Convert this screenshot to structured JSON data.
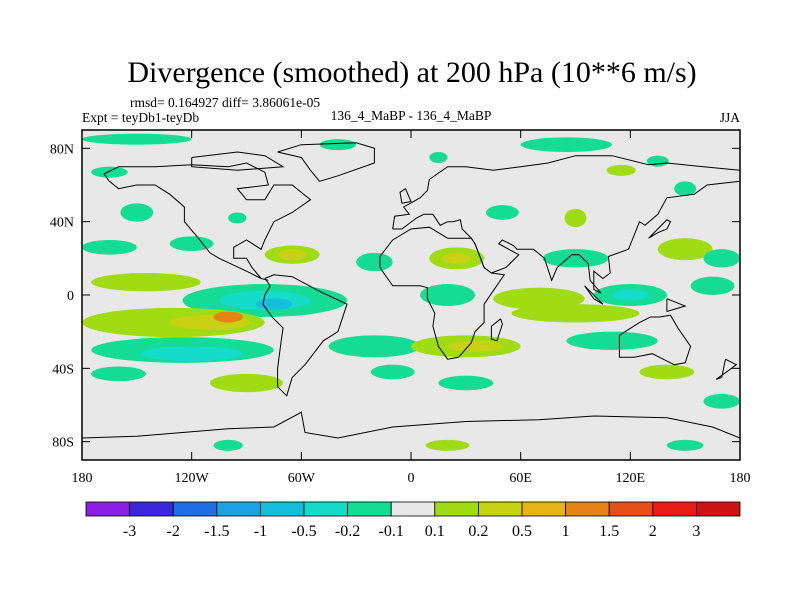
{
  "chart_data": {
    "type": "heatmap",
    "title": "Divergence (smoothed) at 200 hPa (10**6 m/s)",
    "stats": "rmsd= 0.164927 diff= 3.86061e-05",
    "left_label": "Expt = teyDb1-teyDb",
    "center_label": "136_4_MaBP - 136_4_MaBP",
    "right_label": "JJA",
    "x_ticks": [
      {
        "value": -180,
        "label": "180"
      },
      {
        "value": -120,
        "label": "120W"
      },
      {
        "value": -60,
        "label": "60W"
      },
      {
        "value": 0,
        "label": "0"
      },
      {
        "value": 60,
        "label": "60E"
      },
      {
        "value": 120,
        "label": "120E"
      },
      {
        "value": 180,
        "label": "180"
      }
    ],
    "y_ticks": [
      {
        "value": 80,
        "label": "80N"
      },
      {
        "value": 40,
        "label": "40N"
      },
      {
        "value": 0,
        "label": "0"
      },
      {
        "value": -40,
        "label": "40S"
      },
      {
        "value": -80,
        "label": "80S"
      }
    ],
    "xlim": [
      -180,
      180
    ],
    "ylim": [
      -90,
      90
    ],
    "colorbar": {
      "levels": [
        "-3",
        "-2",
        "-1.5",
        "-1",
        "-0.5",
        "-0.2",
        "-0.1",
        "0.1",
        "0.2",
        "0.5",
        "1",
        "1.5",
        "2",
        "3"
      ],
      "colors": [
        "#8c1ee6",
        "#3c28dc",
        "#1e6ee6",
        "#1ea0e6",
        "#14bedc",
        "#14dcc8",
        "#14dc96",
        "#e8e8e8",
        "#a0dc14",
        "#c8d214",
        "#e6b414",
        "#e68214",
        "#e65014",
        "#e61e14",
        "#cc1414"
      ]
    },
    "regions": [
      {
        "lon": -150,
        "lat": 85,
        "rx": 30,
        "ry": 3,
        "bin": 6
      },
      {
        "lon": -165,
        "lat": 67,
        "rx": 10,
        "ry": 3,
        "bin": 6
      },
      {
        "lon": -40,
        "lat": 82,
        "rx": 10,
        "ry": 3,
        "bin": 6
      },
      {
        "lon": 15,
        "lat": 75,
        "rx": 5,
        "ry": 3,
        "bin": 6
      },
      {
        "lon": 85,
        "lat": 82,
        "rx": 25,
        "ry": 4,
        "bin": 6
      },
      {
        "lon": 115,
        "lat": 68,
        "rx": 8,
        "ry": 3,
        "bin": 8
      },
      {
        "lon": 135,
        "lat": 73,
        "rx": 6,
        "ry": 3,
        "bin": 6
      },
      {
        "lon": -150,
        "lat": 45,
        "rx": 9,
        "ry": 5,
        "bin": 6
      },
      {
        "lon": -95,
        "lat": 42,
        "rx": 5,
        "ry": 3,
        "bin": 6
      },
      {
        "lon": 50,
        "lat": 45,
        "rx": 9,
        "ry": 4,
        "bin": 6
      },
      {
        "lon": 90,
        "lat": 42,
        "rx": 6,
        "ry": 5,
        "bin": 8
      },
      {
        "lon": 150,
        "lat": 58,
        "rx": 6,
        "ry": 4,
        "bin": 6
      },
      {
        "lon": -165,
        "lat": 26,
        "rx": 15,
        "ry": 4,
        "bin": 6
      },
      {
        "lon": -120,
        "lat": 28,
        "rx": 12,
        "ry": 4,
        "bin": 6
      },
      {
        "lon": -65,
        "lat": 22,
        "rx": 15,
        "ry": 5,
        "bin": 8
      },
      {
        "lon": -65,
        "lat": 22,
        "rx": 8,
        "ry": 3,
        "bin": 9
      },
      {
        "lon": -20,
        "lat": 18,
        "rx": 10,
        "ry": 5,
        "bin": 6
      },
      {
        "lon": 25,
        "lat": 20,
        "rx": 15,
        "ry": 6,
        "bin": 8
      },
      {
        "lon": 25,
        "lat": 20,
        "rx": 8,
        "ry": 3,
        "bin": 9
      },
      {
        "lon": 90,
        "lat": 20,
        "rx": 18,
        "ry": 5,
        "bin": 6
      },
      {
        "lon": 150,
        "lat": 25,
        "rx": 15,
        "ry": 6,
        "bin": 8
      },
      {
        "lon": 170,
        "lat": 20,
        "rx": 10,
        "ry": 5,
        "bin": 6
      },
      {
        "lon": -145,
        "lat": 7,
        "rx": 30,
        "ry": 5,
        "bin": 8
      },
      {
        "lon": -80,
        "lat": -3,
        "rx": 45,
        "ry": 9,
        "bin": 6
      },
      {
        "lon": -80,
        "lat": -3,
        "rx": 25,
        "ry": 5,
        "bin": 5
      },
      {
        "lon": -75,
        "lat": -5,
        "rx": 10,
        "ry": 3,
        "bin": 4
      },
      {
        "lon": 20,
        "lat": 0,
        "rx": 15,
        "ry": 6,
        "bin": 6
      },
      {
        "lon": 70,
        "lat": -2,
        "rx": 25,
        "ry": 6,
        "bin": 8
      },
      {
        "lon": 120,
        "lat": 0,
        "rx": 20,
        "ry": 6,
        "bin": 6
      },
      {
        "lon": 120,
        "lat": 0,
        "rx": 10,
        "ry": 3,
        "bin": 5
      },
      {
        "lon": 165,
        "lat": 5,
        "rx": 12,
        "ry": 5,
        "bin": 6
      },
      {
        "lon": -130,
        "lat": -15,
        "rx": 50,
        "ry": 8,
        "bin": 8
      },
      {
        "lon": -110,
        "lat": -15,
        "rx": 22,
        "ry": 4,
        "bin": 9
      },
      {
        "lon": -100,
        "lat": -12,
        "rx": 8,
        "ry": 3,
        "bin": 11
      },
      {
        "lon": 90,
        "lat": -10,
        "rx": 35,
        "ry": 5,
        "bin": 8
      },
      {
        "lon": -125,
        "lat": -30,
        "rx": 50,
        "ry": 7,
        "bin": 6
      },
      {
        "lon": -120,
        "lat": -32,
        "rx": 28,
        "ry": 4,
        "bin": 5
      },
      {
        "lon": -20,
        "lat": -28,
        "rx": 25,
        "ry": 6,
        "bin": 6
      },
      {
        "lon": 30,
        "lat": -28,
        "rx": 30,
        "ry": 6,
        "bin": 8
      },
      {
        "lon": 35,
        "lat": -28,
        "rx": 15,
        "ry": 3,
        "bin": 9
      },
      {
        "lon": 110,
        "lat": -25,
        "rx": 25,
        "ry": 5,
        "bin": 6
      },
      {
        "lon": -160,
        "lat": -43,
        "rx": 15,
        "ry": 4,
        "bin": 6
      },
      {
        "lon": -90,
        "lat": -48,
        "rx": 20,
        "ry": 5,
        "bin": 8
      },
      {
        "lon": -10,
        "lat": -42,
        "rx": 12,
        "ry": 4,
        "bin": 6
      },
      {
        "lon": 30,
        "lat": -48,
        "rx": 15,
        "ry": 4,
        "bin": 6
      },
      {
        "lon": 140,
        "lat": -42,
        "rx": 15,
        "ry": 4,
        "bin": 8
      },
      {
        "lon": 170,
        "lat": -58,
        "rx": 10,
        "ry": 4,
        "bin": 6
      },
      {
        "lon": 20,
        "lat": -82,
        "rx": 12,
        "ry": 3,
        "bin": 8
      },
      {
        "lon": -100,
        "lat": -82,
        "rx": 8,
        "ry": 3,
        "bin": 6
      },
      {
        "lon": 150,
        "lat": -82,
        "rx": 10,
        "ry": 3,
        "bin": 6
      }
    ],
    "coastlines": [
      [
        [
          -168,
          66
        ],
        [
          -160,
          70
        ],
        [
          -140,
          70
        ],
        [
          -120,
          71
        ],
        [
          -100,
          70
        ],
        [
          -90,
          72
        ],
        [
          -80,
          67
        ],
        [
          -78,
          60
        ],
        [
          -95,
          58
        ],
        [
          -90,
          52
        ],
        [
          -80,
          52
        ],
        [
          -75,
          60
        ],
        [
          -65,
          60
        ],
        [
          -55,
          52
        ],
        [
          -65,
          45
        ],
        [
          -75,
          40
        ],
        [
          -80,
          30
        ],
        [
          -82,
          25
        ],
        [
          -90,
          30
        ],
        [
          -97,
          26
        ],
        [
          -97,
          20
        ],
        [
          -90,
          20
        ],
        [
          -87,
          15
        ],
        [
          -82,
          9
        ],
        [
          -78,
          8
        ],
        [
          -82,
          9
        ],
        [
          -90,
          13
        ],
        [
          -105,
          20
        ],
        [
          -110,
          23
        ],
        [
          -118,
          33
        ],
        [
          -124,
          40
        ],
        [
          -124,
          48
        ],
        [
          -132,
          55
        ],
        [
          -140,
          60
        ],
        [
          -150,
          60
        ],
        [
          -160,
          58
        ],
        [
          -165,
          62
        ],
        [
          -168,
          66
        ]
      ],
      [
        [
          -80,
          9
        ],
        [
          -75,
          11
        ],
        [
          -65,
          10
        ],
        [
          -50,
          2
        ],
        [
          -35,
          -5
        ],
        [
          -40,
          -20
        ],
        [
          -48,
          -25
        ],
        [
          -58,
          -38
        ],
        [
          -65,
          -45
        ],
        [
          -68,
          -55
        ],
        [
          -73,
          -50
        ],
        [
          -73,
          -40
        ],
        [
          -71,
          -25
        ],
        [
          -70,
          -18
        ],
        [
          -76,
          -12
        ],
        [
          -81,
          -5
        ],
        [
          -80,
          0
        ],
        [
          -77,
          5
        ],
        [
          -80,
          9
        ]
      ],
      [
        [
          -10,
          36
        ],
        [
          -9,
          43
        ],
        [
          -1,
          44
        ],
        [
          -4,
          48
        ],
        [
          5,
          53
        ],
        [
          9,
          57
        ],
        [
          10,
          63
        ],
        [
          20,
          70
        ],
        [
          30,
          70
        ],
        [
          45,
          68
        ],
        [
          60,
          70
        ],
        [
          75,
          72
        ],
        [
          90,
          76
        ],
        [
          110,
          76
        ],
        [
          130,
          71
        ],
        [
          140,
          72
        ],
        [
          160,
          70
        ],
        [
          180,
          68
        ],
        [
          180,
          62
        ],
        [
          162,
          60
        ],
        [
          155,
          55
        ],
        [
          140,
          53
        ],
        [
          135,
          44
        ],
        [
          128,
          38
        ],
        [
          125,
          40
        ],
        [
          121,
          30
        ],
        [
          119,
          25
        ],
        [
          108,
          21
        ],
        [
          109,
          12
        ],
        [
          105,
          9
        ],
        [
          100,
          13
        ],
        [
          100,
          3
        ],
        [
          104,
          1
        ],
        [
          98,
          8
        ],
        [
          97,
          17
        ],
        [
          92,
          22
        ],
        [
          88,
          22
        ],
        [
          80,
          15
        ],
        [
          77,
          8
        ],
        [
          73,
          20
        ],
        [
          67,
          25
        ],
        [
          58,
          25
        ],
        [
          56,
          27
        ],
        [
          50,
          30
        ],
        [
          48,
          28
        ],
        [
          57,
          23
        ],
        [
          59,
          22
        ],
        [
          52,
          15
        ],
        [
          44,
          12
        ],
        [
          40,
          15
        ],
        [
          35,
          28
        ],
        [
          33,
          31
        ],
        [
          28,
          36
        ],
        [
          27,
          41
        ],
        [
          23,
          40
        ],
        [
          20,
          40
        ],
        [
          16,
          38
        ],
        [
          12,
          44
        ],
        [
          7,
          44
        ],
        [
          3,
          42
        ],
        [
          -5,
          36
        ],
        [
          -10,
          36
        ]
      ],
      [
        [
          -17,
          15
        ],
        [
          -10,
          5
        ],
        [
          5,
          5
        ],
        [
          9,
          4
        ],
        [
          9,
          -2
        ],
        [
          13,
          -10
        ],
        [
          12,
          -17
        ],
        [
          15,
          -28
        ],
        [
          20,
          -35
        ],
        [
          26,
          -34
        ],
        [
          33,
          -26
        ],
        [
          35,
          -20
        ],
        [
          40,
          -15
        ],
        [
          40,
          -5
        ],
        [
          51,
          11
        ],
        [
          44,
          12
        ],
        [
          40,
          15
        ],
        [
          35,
          28
        ],
        [
          33,
          31
        ],
        [
          20,
          31
        ],
        [
          10,
          37
        ],
        [
          0,
          36
        ],
        [
          -10,
          30
        ],
        [
          -17,
          21
        ],
        [
          -17,
          15
        ]
      ],
      [
        [
          114,
          -22
        ],
        [
          114,
          -34
        ],
        [
          122,
          -34
        ],
        [
          132,
          -32
        ],
        [
          138,
          -35
        ],
        [
          144,
          -38
        ],
        [
          150,
          -37
        ],
        [
          153,
          -28
        ],
        [
          146,
          -18
        ],
        [
          142,
          -11
        ],
        [
          136,
          -12
        ],
        [
          131,
          -12
        ],
        [
          125,
          -15
        ],
        [
          114,
          -22
        ]
      ],
      [
        [
          -73,
          78
        ],
        [
          -60,
          82
        ],
        [
          -30,
          83
        ],
        [
          -20,
          80
        ],
        [
          -20,
          72
        ],
        [
          -40,
          65
        ],
        [
          -50,
          62
        ],
        [
          -55,
          68
        ],
        [
          -60,
          75
        ],
        [
          -73,
          78
        ]
      ],
      [
        [
          -180,
          -78
        ],
        [
          -150,
          -77
        ],
        [
          -100,
          -73
        ],
        [
          -75,
          -72
        ],
        [
          -60,
          -64
        ],
        [
          -58,
          -75
        ],
        [
          -40,
          -78
        ],
        [
          -10,
          -72
        ],
        [
          30,
          -69
        ],
        [
          70,
          -68
        ],
        [
          100,
          -66
        ],
        [
          140,
          -67
        ],
        [
          165,
          -72
        ],
        [
          180,
          -78
        ]
      ],
      [
        [
          95,
          5
        ],
        [
          105,
          -5
        ],
        [
          100,
          -2
        ],
        [
          95,
          5
        ]
      ],
      [
        [
          140,
          -2
        ],
        [
          150,
          -6
        ],
        [
          140,
          -9
        ],
        [
          140,
          -2
        ]
      ],
      [
        [
          130,
          31
        ],
        [
          135,
          34
        ],
        [
          140,
          36
        ],
        [
          142,
          40
        ],
        [
          140,
          41
        ],
        [
          132,
          33
        ],
        [
          130,
          31
        ]
      ],
      [
        [
          -5,
          50
        ],
        [
          0,
          51
        ],
        [
          -3,
          58
        ],
        [
          -6,
          56
        ],
        [
          -5,
          50
        ]
      ],
      [
        [
          49,
          -13
        ],
        [
          50,
          -16
        ],
        [
          47,
          -25
        ],
        [
          44,
          -24
        ],
        [
          44,
          -17
        ],
        [
          49,
          -13
        ]
      ],
      [
        [
          -120,
          75
        ],
        [
          -95,
          78
        ],
        [
          -80,
          76
        ],
        [
          -70,
          70
        ],
        [
          -95,
          68
        ],
        [
          -120,
          70
        ],
        [
          -120,
          75
        ]
      ],
      [
        [
          172,
          -35
        ],
        [
          178,
          -38
        ],
        [
          174,
          -41
        ],
        [
          167,
          -46
        ],
        [
          170,
          -45
        ],
        [
          172,
          -35
        ]
      ]
    ]
  }
}
